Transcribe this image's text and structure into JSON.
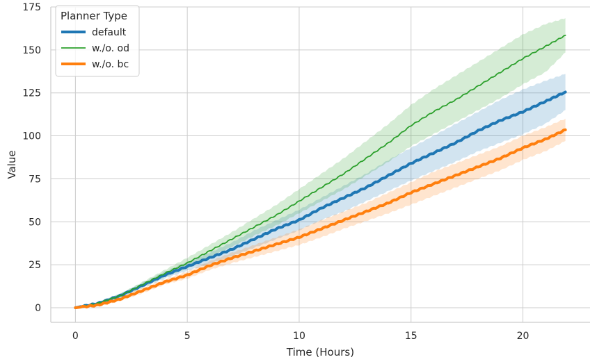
{
  "chart_data": {
    "type": "line",
    "xlabel": "Time (Hours)",
    "ylabel": "Value",
    "xlim": [
      -1.1,
      23.0
    ],
    "ylim": [
      -8.5,
      175
    ],
    "xticks": [
      0,
      5,
      10,
      15,
      20
    ],
    "yticks": [
      0,
      25,
      50,
      75,
      100,
      125,
      150,
      175
    ],
    "grid": true,
    "legend": {
      "title": "Planner Type",
      "placement": "top-left"
    },
    "x": [
      0,
      1,
      2,
      3,
      4,
      5,
      6,
      7,
      8,
      9,
      10,
      11,
      12,
      13,
      14,
      15,
      16,
      17,
      18,
      19,
      20,
      21,
      21.9
    ],
    "series": [
      {
        "name": "default",
        "color": "#1f77b4",
        "values": [
          0,
          2.5,
          7,
          13,
          19,
          24,
          29,
          34,
          40,
          46,
          51,
          58,
          64,
          70,
          77,
          84,
          90,
          96,
          103,
          109,
          114,
          120,
          125.5
        ],
        "lower": [
          0,
          2,
          6,
          11.5,
          17,
          21.5,
          25.5,
          30,
          35,
          40,
          45,
          51,
          56,
          62,
          68,
          74,
          79.5,
          85,
          91,
          96,
          101,
          107,
          115
        ],
        "upper": [
          0,
          3,
          8,
          14.5,
          21,
          26.5,
          32,
          38,
          45,
          51,
          57,
          64,
          71,
          78,
          86,
          93,
          100,
          107,
          114,
          121,
          127,
          132,
          136
        ]
      },
      {
        "name": "w./o. od",
        "color": "#2ca02c",
        "values": [
          0,
          2.5,
          7,
          13.5,
          20,
          26,
          33,
          40,
          47,
          54,
          62,
          70,
          78,
          87,
          96,
          106,
          114,
          121,
          129,
          137,
          145,
          152,
          158.5
        ],
        "lower": [
          0,
          2,
          6,
          12,
          18,
          23,
          29.5,
          35.5,
          42,
          48,
          55,
          62,
          69,
          77,
          85,
          94,
          101,
          108,
          115,
          122,
          130,
          137,
          148.5
        ],
        "upper": [
          0,
          3,
          8,
          15,
          22,
          29,
          36.5,
          44,
          52,
          60,
          69,
          78,
          87,
          97,
          107,
          118,
          127,
          135,
          143,
          151,
          159,
          165,
          168.5
        ]
      },
      {
        "name": "w./o. bc",
        "color": "#ff7f0e",
        "values": [
          0,
          1.5,
          5,
          10,
          15,
          19,
          24.5,
          29,
          33,
          37,
          41,
          46,
          51,
          56,
          61,
          67,
          72,
          77,
          82,
          87,
          93,
          98,
          103.5
        ],
        "lower": [
          0,
          1,
          4,
          8.5,
          13.5,
          17,
          22,
          26,
          29.5,
          33,
          36.5,
          41,
          46,
          50.5,
          55,
          60,
          65,
          70,
          75,
          80,
          86,
          91,
          97
        ],
        "upper": [
          0,
          2,
          6,
          11.5,
          16.5,
          21,
          27,
          32,
          36.5,
          41,
          45.5,
          51,
          56,
          61,
          67,
          73,
          79,
          84,
          89,
          94,
          100,
          105,
          110
        ]
      }
    ]
  }
}
